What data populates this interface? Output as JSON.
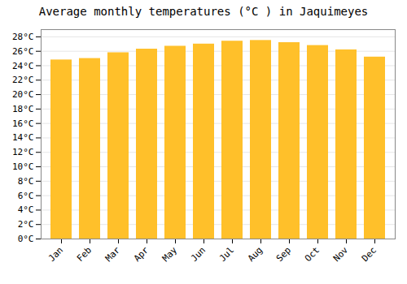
{
  "chart_data": {
    "type": "bar",
    "title": "Average monthly temperatures (°C ) in Jaquimeyes",
    "categories": [
      "Jan",
      "Feb",
      "Mar",
      "Apr",
      "May",
      "Jun",
      "Jul",
      "Aug",
      "Sep",
      "Oct",
      "Nov",
      "Dec"
    ],
    "values": [
      24.8,
      25.0,
      25.8,
      26.3,
      26.7,
      27.0,
      27.4,
      27.5,
      27.2,
      26.8,
      26.2,
      25.2
    ],
    "color": "#FFC02A",
    "ylim": [
      0,
      29
    ],
    "yticks": [
      {
        "value": 0,
        "label": "0°C"
      },
      {
        "value": 2,
        "label": "2°C"
      },
      {
        "value": 4,
        "label": "4°C"
      },
      {
        "value": 6,
        "label": "6°C"
      },
      {
        "value": 8,
        "label": "8°C"
      },
      {
        "value": 10,
        "label": "10°C"
      },
      {
        "value": 12,
        "label": "12°C"
      },
      {
        "value": 14,
        "label": "14°C"
      },
      {
        "value": 16,
        "label": "16°C"
      },
      {
        "value": 18,
        "label": "18°C"
      },
      {
        "value": 20,
        "label": "20°C"
      },
      {
        "value": 22,
        "label": "22°C"
      },
      {
        "value": 24,
        "label": "24°C"
      },
      {
        "value": 26,
        "label": "26°C"
      },
      {
        "value": 28,
        "label": "28°C"
      }
    ],
    "grid": true
  }
}
